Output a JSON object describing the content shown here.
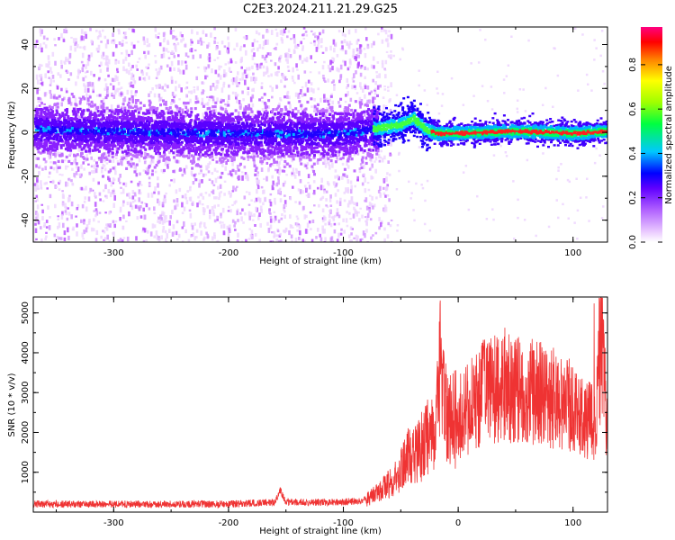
{
  "title": "C2E3.2024.211.21.29.G25",
  "chart_data": [
    {
      "type": "heatmap",
      "xlabel": "Height of straight line (km)",
      "ylabel": "Frequency (Hz)",
      "xlim": [
        -370,
        130
      ],
      "ylim": [
        -50,
        48
      ],
      "xticks": [
        -300,
        -200,
        -100,
        0,
        100
      ],
      "yticks": [
        -40,
        -20,
        0,
        20,
        40
      ],
      "colorbar": {
        "label": "Normalized spectral amplitude",
        "range": [
          0.0,
          0.97
        ],
        "ticks": [
          "0.0",
          "0.2",
          "0.4",
          "0.6",
          "0.8"
        ]
      },
      "description_series": [
        {
          "name": "band",
          "x": [
            -370,
            -300,
            -200,
            -100,
            -75,
            -50,
            -40,
            -30,
            -20,
            0,
            50,
            100,
            130
          ],
          "y": [
            2,
            1,
            0,
            0,
            2,
            4,
            7,
            2,
            0,
            0,
            1,
            0,
            1
          ]
        }
      ],
      "noise_vertical_extent_hz": [
        -50,
        48
      ],
      "noise_cutoff_x": -65
    },
    {
      "type": "line",
      "xlabel": "Height of straight line (km)",
      "ylabel": "SNR (10 * v/v)",
      "xlim": [
        -370,
        130
      ],
      "ylim": [
        0,
        5400
      ],
      "xticks": [
        -300,
        -200,
        -100,
        0,
        100
      ],
      "yticks": [
        1000,
        2000,
        3000,
        4000,
        5000
      ],
      "color": "#ef3333",
      "series": [
        {
          "x": [
            -370,
            -300,
            -200,
            -160,
            -155,
            -150,
            -100,
            -80,
            -70,
            -60,
            -50,
            -45,
            -40,
            -30,
            -20,
            -15,
            -10,
            0,
            10,
            20,
            30,
            40,
            50,
            60,
            70,
            80,
            90,
            100,
            110,
            120,
            125,
            130
          ],
          "y": [
            200,
            200,
            200,
            250,
            550,
            250,
            250,
            300,
            500,
            700,
            1000,
            1400,
            1300,
            1700,
            2300,
            3700,
            2300,
            2400,
            2600,
            3000,
            3100,
            3200,
            3100,
            3000,
            3000,
            2900,
            2800,
            2600,
            2400,
            2200,
            4500,
            2000
          ]
        }
      ]
    }
  ]
}
